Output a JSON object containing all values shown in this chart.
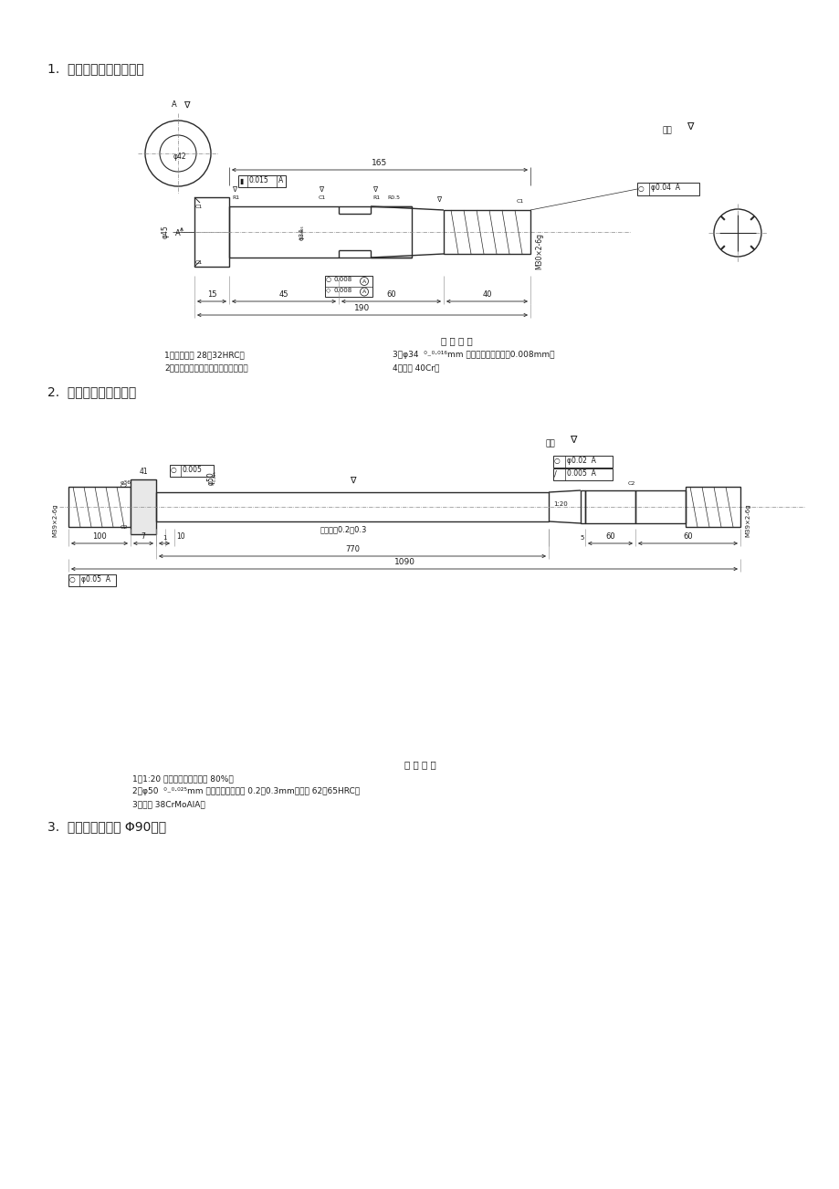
{
  "bg_color": "#ffffff",
  "title1": "1.  连杆螺钉，毛坏为锻件",
  "title2": "2.  活塞杆，毛坏为锻件",
  "title3": "3.  输出轴，毛坏为 Φ90棒料",
  "tech_title1": "技 术 要 求",
  "tech1_line1": "1．调质处理 28－32HRC。",
  "tech1_line2": "2．磁粉探伤，无裂纹，夹渣等缺陷。",
  "tech1_line3": "3．φ34  ⁰₋⁰⋅⁰¹⁶mm 圆度、圆柱度公差为0.008mm。",
  "tech1_line4": "4．材料 40Cr。",
  "tech_title2": "技 术 要 求",
  "tech2_line1": "1．1:20 锥度接触面积不少于 80%。",
  "tech2_line2": "2．φ50  ⁰₋⁰⋅⁰²⁵mm 部分氮化层深度为 0.2－0.3mm，硬度 62－65HRC。",
  "tech2_line3": "3．材料 38CrMoAlA。",
  "font_color": "#1a1a1a",
  "drawing_color": "#2a2a2a",
  "dim_color": "#2a2a2a",
  "center_line_color": "#888888"
}
